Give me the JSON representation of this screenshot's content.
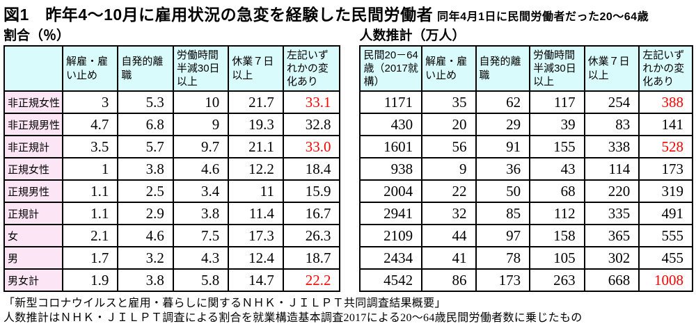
{
  "header": {
    "title": "図1　昨年4～10月に雇用状況の急変を経験した民間労働者",
    "subtitle": "同年4月1日に民間労働者だった20～64歳"
  },
  "colors": {
    "header_bg": "#d9fbfb",
    "row_label_bg": "#fce5f5",
    "highlight_text": "#ff0000",
    "border": "#000000"
  },
  "left_table": {
    "caption": "割合（％）",
    "columns": [
      "",
      "解雇・雇い止め",
      "自発的離職",
      "労働時間半減30日以上",
      "休業７日以上",
      "左記いずれかの変化あり"
    ],
    "rows": [
      {
        "label": "非正規女性",
        "values": [
          "3",
          "5.3",
          "10",
          "21.7",
          "33.1"
        ],
        "highlight": [
          4
        ]
      },
      {
        "label": "非正規男性",
        "values": [
          "4.7",
          "6.8",
          "9",
          "19.3",
          "32.8"
        ],
        "highlight": []
      },
      {
        "label": "非正規計",
        "values": [
          "3.5",
          "5.7",
          "9.7",
          "21.1",
          "33.0"
        ],
        "highlight": [
          4
        ]
      },
      {
        "label": "正規女性",
        "values": [
          "1",
          "3.8",
          "4.6",
          "12.2",
          "18.4"
        ],
        "highlight": []
      },
      {
        "label": "正規男性",
        "values": [
          "1.1",
          "2.5",
          "3.4",
          "11",
          "15.9"
        ],
        "highlight": []
      },
      {
        "label": "正規計",
        "values": [
          "1.1",
          "2.9",
          "3.8",
          "11.4",
          "16.7"
        ],
        "highlight": []
      },
      {
        "label": "女",
        "values": [
          "2.1",
          "4.6",
          "7.5",
          "17.3",
          "26.3"
        ],
        "highlight": []
      },
      {
        "label": "男",
        "values": [
          "1.7",
          "3.2",
          "4.3",
          "12.4",
          "18.7"
        ],
        "highlight": []
      },
      {
        "label": "男女計",
        "values": [
          "1.9",
          "3.8",
          "5.8",
          "14.7",
          "22.2"
        ],
        "highlight": [
          4
        ]
      }
    ]
  },
  "right_table": {
    "caption": "人数推計（万人）",
    "columns": [
      "民間20－64歳（2017就構）",
      "解雇・雇い止め",
      "自発的離職",
      "労働時間半減30日以上",
      "休業７日以上",
      "左記いずれかの変化あり"
    ],
    "rows": [
      {
        "values": [
          "1171",
          "35",
          "62",
          "117",
          "254",
          "388"
        ],
        "highlight": [
          5
        ]
      },
      {
        "values": [
          "430",
          "20",
          "29",
          "39",
          "83",
          "141"
        ],
        "highlight": []
      },
      {
        "values": [
          "1601",
          "56",
          "91",
          "155",
          "338",
          "528"
        ],
        "highlight": [
          5
        ]
      },
      {
        "values": [
          "938",
          "9",
          "36",
          "43",
          "114",
          "173"
        ],
        "highlight": []
      },
      {
        "values": [
          "2004",
          "22",
          "50",
          "68",
          "220",
          "319"
        ],
        "highlight": []
      },
      {
        "values": [
          "2941",
          "32",
          "85",
          "112",
          "335",
          "491"
        ],
        "highlight": []
      },
      {
        "values": [
          "2109",
          "44",
          "97",
          "158",
          "365",
          "555"
        ],
        "highlight": []
      },
      {
        "values": [
          "2434",
          "41",
          "78",
          "105",
          "302",
          "455"
        ],
        "highlight": []
      },
      {
        "values": [
          "4542",
          "86",
          "173",
          "263",
          "668",
          "1008"
        ],
        "highlight": [
          5
        ]
      }
    ]
  },
  "footer": {
    "line1": "「新型コロナウイルスと雇用・暮らしに関するＮＨＫ・ＪＩＬＰＴ共同調査結果概要」",
    "line2": "人数推計はＮＨＫ・ＪＩＬＰＴ調査による割合を就業構造基本調査2017による20～64歳民間労働者数に乗じたもの"
  }
}
